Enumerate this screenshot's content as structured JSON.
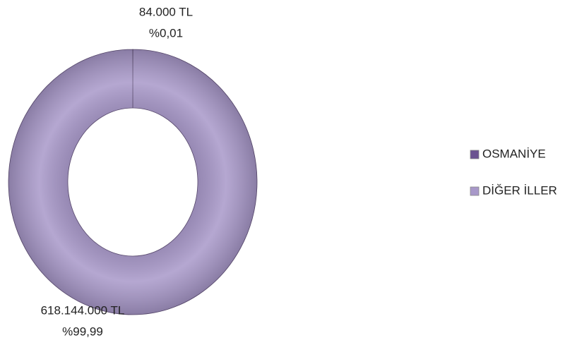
{
  "chart_data": {
    "type": "donut",
    "categories": [
      "OSMANİYE",
      "DİĞER İLLER"
    ],
    "values": [
      84000,
      618144000
    ],
    "value_labels": [
      "84.000 TL",
      "618.144.000 TL"
    ],
    "percents": [
      0.01,
      99.99
    ],
    "percent_labels": [
      "%0,01",
      "%99,99"
    ],
    "colors": [
      "#6b5290",
      "#a898c9"
    ],
    "legend": "right"
  }
}
